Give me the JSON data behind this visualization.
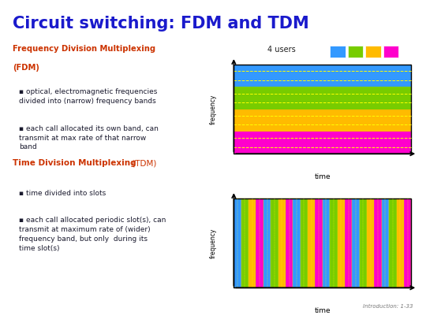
{
  "title": "Circuit switching: FDM and TDM",
  "title_color": "#1a1acc",
  "title_fontsize": 15,
  "bg_color": "#ffffff",
  "fdm_heading_bold": "Frequency Division Multiplexing",
  "fdm_heading_normal": "(FDM)",
  "fdm_title_color": "#cc3300",
  "fdm_bullets": [
    "optical, electromagnetic frequencies\ndivided into (narrow) frequency bands",
    "each call allocated its own band, can\ntransmit at max rate of that narrow\nband"
  ],
  "tdm_heading_bold": "Time Division Multiplexing",
  "tdm_heading_normal": " (TDM)",
  "tdm_title_color": "#cc3300",
  "tdm_bullets": [
    "time divided into slots",
    "each call allocated periodic slot(s), can\ntransmit at maximum rate of (wider)\nfrequency band, but only  during its\ntime slot(s)"
  ],
  "users_label": "4 users",
  "user_colors": [
    "#3399ff",
    "#77cc00",
    "#ffbb00",
    "#ff00cc"
  ],
  "fdm_band_colors": [
    "#3399ff",
    "#77cc00",
    "#ffbb00",
    "#ff00cc"
  ],
  "tdm_slot_colors": [
    "#3399ff",
    "#77cc00",
    "#ffbb00",
    "#ff00cc"
  ],
  "n_tdm_slots": 24,
  "footer_text": "Introduction: 1-33",
  "dashed_color": "#ffff00"
}
